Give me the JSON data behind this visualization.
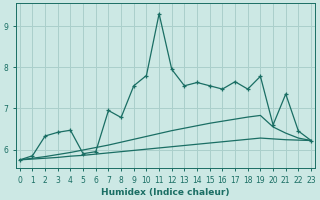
{
  "xlabel": "Humidex (Indice chaleur)",
  "ylabel": "",
  "background_color": "#cce8e4",
  "grid_color": "#aacfcb",
  "line_color": "#1a6e64",
  "x_ticks": [
    0,
    1,
    2,
    3,
    4,
    5,
    6,
    7,
    8,
    9,
    10,
    11,
    12,
    13,
    14,
    15,
    16,
    17,
    18,
    19,
    20,
    21,
    22,
    23
  ],
  "y_ticks": [
    6,
    7,
    8,
    9
  ],
  "ylim": [
    5.55,
    9.55
  ],
  "xlim": [
    -0.3,
    23.3
  ],
  "line1_x": [
    0,
    1,
    2,
    3,
    4,
    5,
    6,
    7,
    8,
    9,
    10,
    11,
    12,
    13,
    14,
    15,
    16,
    17,
    18,
    19,
    20,
    21,
    22,
    23
  ],
  "line1_y": [
    5.75,
    5.85,
    6.33,
    6.42,
    6.47,
    5.9,
    5.95,
    6.95,
    6.78,
    7.55,
    7.8,
    9.3,
    7.95,
    7.55,
    7.63,
    7.55,
    7.47,
    7.65,
    7.47,
    7.78,
    6.6,
    7.35,
    6.45,
    6.22
  ],
  "line2_x": [
    0,
    1,
    2,
    3,
    4,
    5,
    6,
    7,
    8,
    9,
    10,
    11,
    12,
    13,
    14,
    15,
    16,
    17,
    18,
    19,
    20,
    21,
    22,
    23
  ],
  "line2_y": [
    5.75,
    5.79,
    5.83,
    5.88,
    5.93,
    5.99,
    6.05,
    6.11,
    6.18,
    6.25,
    6.32,
    6.39,
    6.46,
    6.52,
    6.58,
    6.64,
    6.69,
    6.74,
    6.79,
    6.83,
    6.55,
    6.4,
    6.28,
    6.22
  ],
  "line3_x": [
    0,
    1,
    2,
    3,
    4,
    5,
    6,
    7,
    8,
    9,
    10,
    11,
    12,
    13,
    14,
    15,
    16,
    17,
    18,
    19,
    20,
    21,
    22,
    23
  ],
  "line3_y": [
    5.75,
    5.77,
    5.79,
    5.81,
    5.84,
    5.86,
    5.89,
    5.92,
    5.95,
    5.98,
    6.01,
    6.04,
    6.07,
    6.1,
    6.13,
    6.16,
    6.19,
    6.22,
    6.25,
    6.28,
    6.26,
    6.24,
    6.23,
    6.22
  ]
}
